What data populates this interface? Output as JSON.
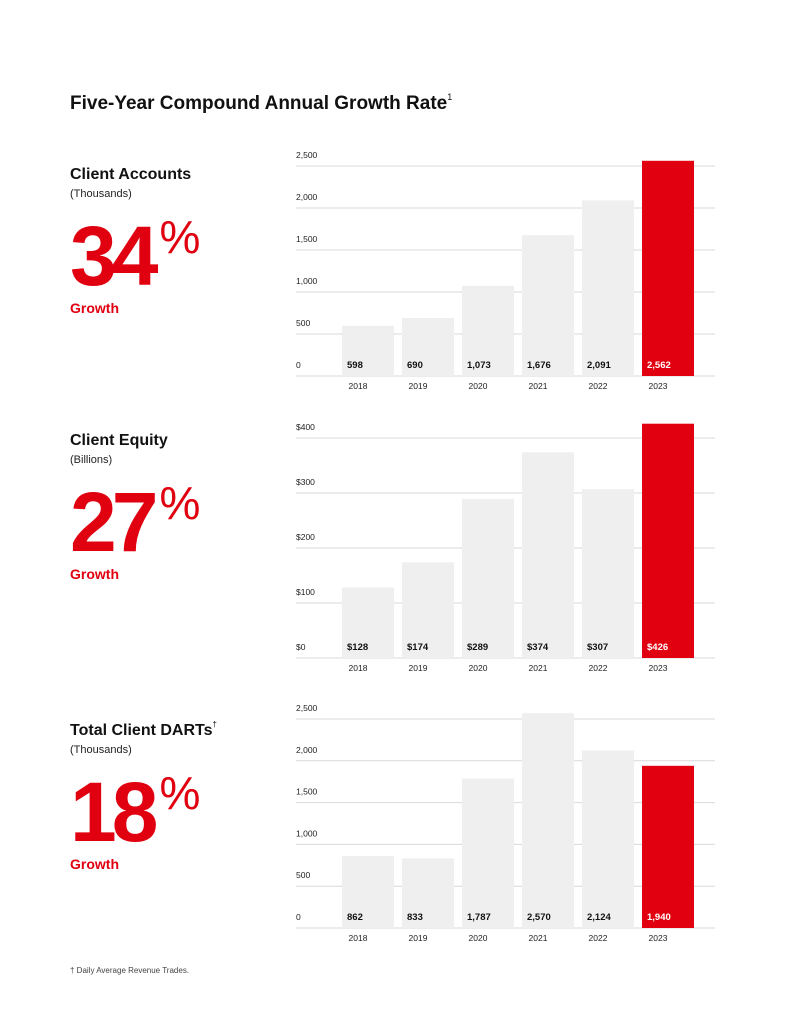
{
  "header": {
    "title": "Five-Year Compound Annual Growth Rate",
    "title_sup": "1"
  },
  "sections": [
    {
      "name": "Client Accounts",
      "name_sup": "",
      "unit": "(Thousands)",
      "growth_value": "34",
      "growth_symbol": "%",
      "growth_label": "Growth"
    },
    {
      "name": "Client Equity",
      "name_sup": "",
      "unit": "(Billions)",
      "growth_value": "27",
      "growth_symbol": "%",
      "growth_label": "Growth"
    },
    {
      "name": "Total Client DARTs",
      "name_sup": "†",
      "unit": "(Thousands)",
      "growth_value": "18",
      "growth_symbol": "%",
      "growth_label": "Growth"
    }
  ],
  "footnote": "† Daily Average Revenue Trades.",
  "colors": {
    "accent": "#e0000f",
    "bar": "#efefef",
    "highlight_bar": "#e0000f",
    "gridline": "#d9d9d9"
  },
  "chart_data": [
    {
      "type": "bar",
      "categories": [
        "2018",
        "2019",
        "2020",
        "2021",
        "2022",
        "2023"
      ],
      "values": [
        598,
        690,
        1073,
        1676,
        2091,
        2562
      ],
      "data_labels": [
        "598",
        "690",
        "1,073",
        "1,676",
        "2,091",
        "2,562"
      ],
      "yticks": [
        0,
        500,
        1000,
        1500,
        2000,
        2500
      ],
      "ytick_labels": [
        "0",
        "500",
        "1,000",
        "1,500",
        "2,000",
        "2,500"
      ],
      "ylim": [
        0,
        2500
      ],
      "highlight_index": 5,
      "grid": true
    },
    {
      "type": "bar",
      "categories": [
        "2018",
        "2019",
        "2020",
        "2021",
        "2022",
        "2023"
      ],
      "values": [
        128,
        174,
        289,
        374,
        307,
        426
      ],
      "data_labels": [
        "$128",
        "$174",
        "$289",
        "$374",
        "$307",
        "$426"
      ],
      "yticks": [
        0,
        100,
        200,
        300,
        400
      ],
      "ytick_labels": [
        "$0",
        "$100",
        "$200",
        "$300",
        "$400"
      ],
      "ylim": [
        0,
        400
      ],
      "highlight_index": 5,
      "grid": true
    },
    {
      "type": "bar",
      "categories": [
        "2018",
        "2019",
        "2020",
        "2021",
        "2022",
        "2023"
      ],
      "values": [
        862,
        833,
        1787,
        2570,
        2124,
        1940
      ],
      "data_labels": [
        "862",
        "833",
        "1,787",
        "2,570",
        "2,124",
        "1,940"
      ],
      "yticks": [
        0,
        500,
        1000,
        1500,
        2000,
        2500
      ],
      "ytick_labels": [
        "0",
        "500",
        "1,000",
        "1,500",
        "2,000",
        "2,500"
      ],
      "ylim": [
        0,
        2500
      ],
      "highlight_index": 5,
      "grid": true
    }
  ]
}
